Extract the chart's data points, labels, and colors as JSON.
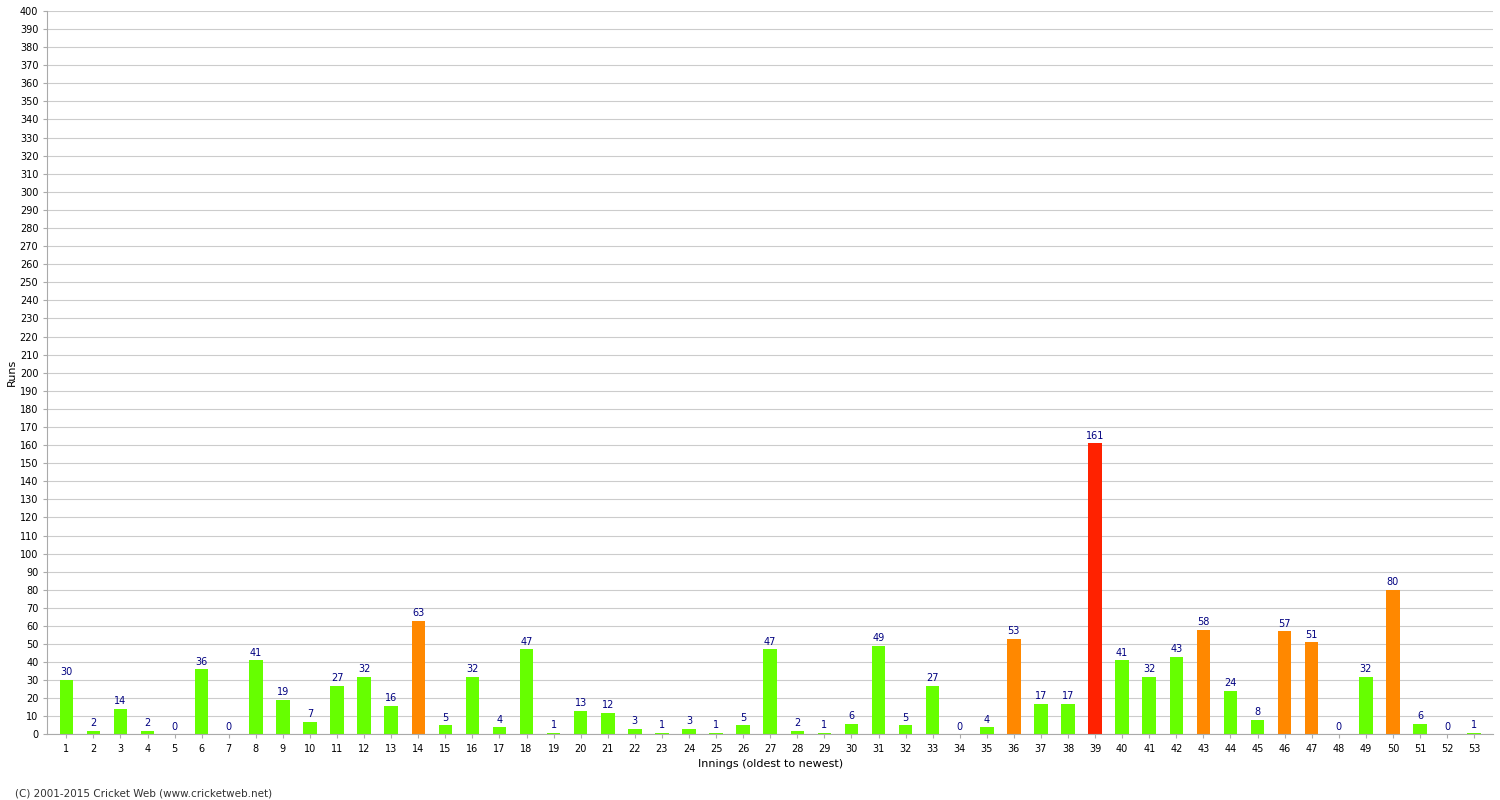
{
  "innings": [
    1,
    2,
    3,
    4,
    5,
    6,
    7,
    8,
    9,
    10,
    11,
    12,
    13,
    14,
    15,
    16,
    17,
    18,
    19,
    20,
    21,
    22,
    23,
    24,
    25,
    26,
    27,
    28,
    29,
    30,
    31,
    32,
    33,
    34,
    35,
    36,
    37,
    38,
    39,
    40,
    41,
    42,
    43,
    44,
    45,
    46,
    47,
    48,
    49,
    50,
    51,
    52,
    53
  ],
  "values": [
    30,
    2,
    14,
    2,
    0,
    36,
    0,
    41,
    19,
    7,
    27,
    32,
    16,
    63,
    5,
    32,
    4,
    47,
    1,
    13,
    12,
    3,
    1,
    3,
    1,
    5,
    47,
    2,
    1,
    6,
    49,
    5,
    27,
    0,
    4,
    53,
    17,
    17,
    161,
    41,
    32,
    43,
    58,
    24,
    8,
    57,
    51,
    0,
    32,
    80,
    6,
    0,
    1
  ],
  "colors": [
    "#66FF00",
    "#66FF00",
    "#66FF00",
    "#66FF00",
    "#66FF00",
    "#66FF00",
    "#66FF00",
    "#66FF00",
    "#66FF00",
    "#66FF00",
    "#66FF00",
    "#66FF00",
    "#66FF00",
    "#FF8800",
    "#66FF00",
    "#66FF00",
    "#66FF00",
    "#66FF00",
    "#66FF00",
    "#66FF00",
    "#66FF00",
    "#66FF00",
    "#66FF00",
    "#66FF00",
    "#66FF00",
    "#66FF00",
    "#66FF00",
    "#66FF00",
    "#66FF00",
    "#66FF00",
    "#66FF00",
    "#66FF00",
    "#66FF00",
    "#66FF00",
    "#66FF00",
    "#FF8800",
    "#66FF00",
    "#66FF00",
    "#FF2200",
    "#66FF00",
    "#66FF00",
    "#66FF00",
    "#FF8800",
    "#66FF00",
    "#66FF00",
    "#FF8800",
    "#FF8800",
    "#66FF00",
    "#66FF00",
    "#FF8800",
    "#66FF00",
    "#66FF00",
    "#66FF00"
  ],
  "ylabel": "Runs",
  "xlabel": "Innings (oldest to newest)",
  "ylim": [
    0,
    400
  ],
  "yticks": [
    0,
    10,
    20,
    30,
    40,
    50,
    60,
    70,
    80,
    90,
    100,
    110,
    120,
    130,
    140,
    150,
    160,
    170,
    180,
    190,
    200,
    210,
    220,
    230,
    240,
    250,
    260,
    270,
    280,
    290,
    300,
    310,
    320,
    330,
    340,
    350,
    360,
    370,
    380,
    390,
    400
  ],
  "background_color": "#FFFFFF",
  "grid_color": "#CCCCCC",
  "label_color": "#000080",
  "label_fontsize": 7,
  "tick_fontsize": 7,
  "axis_label_fontsize": 8,
  "footer_text": "(C) 2001-2015 Cricket Web (www.cricketweb.net)",
  "bar_width": 0.5
}
